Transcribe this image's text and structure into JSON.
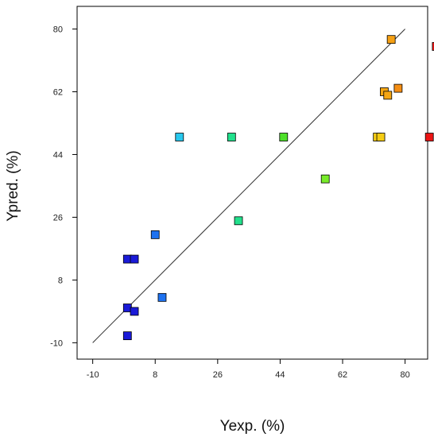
{
  "chart_data": {
    "type": "scatter",
    "title": "",
    "xlabel": "Yexp. (%)",
    "ylabel": "Ypred. (%)",
    "xlim": [
      -10,
      80
    ],
    "ylim": [
      -10,
      80
    ],
    "x_ticks": [
      -10,
      8,
      26,
      44,
      62,
      80
    ],
    "y_ticks": [
      -10,
      8,
      26,
      44,
      62,
      80
    ],
    "grid": false,
    "reference_line": {
      "from": [
        -10,
        -10
      ],
      "to": [
        80,
        80
      ]
    },
    "colors": {
      "frame": "#000000",
      "reference_line": "#333333",
      "marker_edge": "#000000"
    },
    "series": [
      {
        "points": [
          {
            "x": 0,
            "y": 14,
            "color": "#1a1ad8"
          },
          {
            "x": 2,
            "y": 14,
            "color": "#1a1ad8"
          },
          {
            "x": 0,
            "y": 0,
            "color": "#1a1ad8"
          },
          {
            "x": 2,
            "y": -1,
            "color": "#1a1ad8"
          },
          {
            "x": 0,
            "y": -8,
            "color": "#1a1ad8"
          },
          {
            "x": 8,
            "y": 21,
            "color": "#1e72f0"
          },
          {
            "x": 10,
            "y": 3,
            "color": "#1e72f0"
          },
          {
            "x": 15,
            "y": 49,
            "color": "#28c8ee"
          },
          {
            "x": 30,
            "y": 49,
            "color": "#22e08c"
          },
          {
            "x": 32,
            "y": 25,
            "color": "#22e08c"
          },
          {
            "x": 45,
            "y": 49,
            "color": "#4ee02a"
          },
          {
            "x": 57,
            "y": 37,
            "color": "#78ec2a"
          },
          {
            "x": 72,
            "y": 49,
            "color": "#f5cc14"
          },
          {
            "x": 73,
            "y": 49,
            "color": "#f5cc14"
          },
          {
            "x": 74,
            "y": 62,
            "color": "#f5a614"
          },
          {
            "x": 75,
            "y": 61,
            "color": "#f5a614"
          },
          {
            "x": 78,
            "y": 63,
            "color": "#f58e14"
          },
          {
            "x": 76,
            "y": 77,
            "color": "#f5a014"
          },
          {
            "x": 87,
            "y": 49,
            "color": "#ec1414"
          },
          {
            "x": 89,
            "y": 75,
            "color": "#ec1414"
          }
        ]
      }
    ]
  }
}
